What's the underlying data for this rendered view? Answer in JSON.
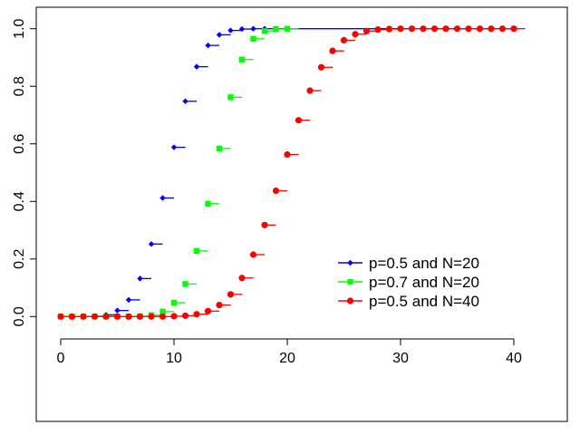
{
  "chart_data": {
    "type": "scatter",
    "title": "",
    "xlabel": "",
    "ylabel": "",
    "xlim": [
      -1.6,
      41.6
    ],
    "ylim": [
      -0.04,
      1.04
    ],
    "x_ticks": [
      0,
      10,
      20,
      30,
      40
    ],
    "y_ticks": [
      0.0,
      0.2,
      0.4,
      0.6,
      0.8,
      1.0
    ],
    "x_tick_labels": [
      "0",
      "10",
      "20",
      "30",
      "40"
    ],
    "y_tick_labels": [
      "0.0",
      "0.2",
      "0.4",
      "0.6",
      "0.8",
      "1.0"
    ],
    "legend_position": "right",
    "series": [
      {
        "name": "p=0.5 and N=20",
        "color": "#0000ff",
        "marker": "diamond",
        "x": [
          0,
          1,
          2,
          3,
          4,
          5,
          6,
          7,
          8,
          9,
          10,
          11,
          12,
          13,
          14,
          15,
          16,
          17,
          18,
          19,
          20
        ],
        "y": [
          0.0,
          0.0,
          0.0,
          0.001,
          0.006,
          0.021,
          0.058,
          0.132,
          0.252,
          0.412,
          0.588,
          0.748,
          0.868,
          0.942,
          0.979,
          0.994,
          0.999,
          1.0,
          1.0,
          1.0,
          1.0
        ],
        "trailing_line": {
          "from": 20,
          "to": 40,
          "y": 1.0
        }
      },
      {
        "name": "p=0.7 and N=20",
        "color": "#00ff00",
        "marker": "square",
        "x": [
          0,
          1,
          2,
          3,
          4,
          5,
          6,
          7,
          8,
          9,
          10,
          11,
          12,
          13,
          14,
          15,
          16,
          17,
          18,
          19,
          20
        ],
        "y": [
          0.0,
          0.0,
          0.0,
          0.0,
          0.0,
          0.0,
          0.0,
          0.001,
          0.005,
          0.017,
          0.048,
          0.113,
          0.228,
          0.392,
          0.584,
          0.762,
          0.893,
          0.965,
          0.992,
          0.999,
          1.0
        ]
      },
      {
        "name": "p=0.5 and N=40",
        "color": "#ff0000",
        "marker": "circle",
        "x": [
          0,
          1,
          2,
          3,
          4,
          5,
          6,
          7,
          8,
          9,
          10,
          11,
          12,
          13,
          14,
          15,
          16,
          17,
          18,
          19,
          20,
          21,
          22,
          23,
          24,
          25,
          26,
          27,
          28,
          29,
          30,
          31,
          32,
          33,
          34,
          35,
          36,
          37,
          38,
          39,
          40
        ],
        "y": [
          0.0,
          0.0,
          0.0,
          0.0,
          0.0,
          0.0,
          0.0,
          0.0,
          0.0,
          0.0,
          0.001,
          0.003,
          0.008,
          0.019,
          0.04,
          0.077,
          0.134,
          0.215,
          0.318,
          0.437,
          0.563,
          0.682,
          0.785,
          0.866,
          0.923,
          0.96,
          0.981,
          0.992,
          0.997,
          0.999,
          1.0,
          1.0,
          1.0,
          1.0,
          1.0,
          1.0,
          1.0,
          1.0,
          1.0,
          1.0,
          1.0
        ]
      }
    ]
  }
}
